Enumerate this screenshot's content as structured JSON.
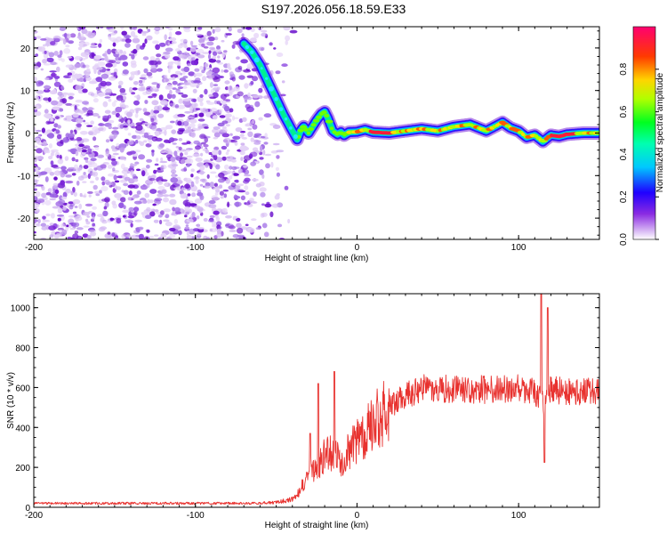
{
  "title": "S197.2026.056.18.59.E33",
  "chart_data": [
    {
      "type": "heatmap",
      "panel": "spectrogram",
      "xlabel": "Height of straight line (km)",
      "ylabel": "Frequency (Hz)",
      "xlim": [
        -200,
        150
      ],
      "ylim": [
        -25,
        25
      ],
      "xticks": [
        -200,
        -100,
        0,
        100
      ],
      "xtick_labels": [
        "-200",
        "-100",
        "0",
        "100"
      ],
      "yticks": [
        -20,
        -10,
        0,
        10,
        20
      ],
      "ytick_labels": [
        "-20",
        "-10",
        "0",
        "10",
        "20"
      ],
      "colorbar": {
        "label": "Normalized spectral amplitude",
        "range": [
          0,
          1
        ],
        "ticks": [
          0,
          0.2,
          0.4,
          0.6,
          0.8
        ],
        "tick_labels": [
          "0.0",
          "0.2",
          "0.4",
          "0.6",
          "0.8"
        ]
      },
      "ridge": {
        "x": [
          -70,
          -65,
          -60,
          -55,
          -50,
          -45,
          -40,
          -37,
          -35,
          -33,
          -30,
          -28,
          -25,
          -22,
          -20,
          -18,
          -15,
          -12,
          -10,
          -8,
          -5,
          0,
          5,
          10,
          20,
          30,
          40,
          50,
          60,
          70,
          80,
          90,
          95,
          100,
          105,
          110,
          115,
          120,
          125,
          130,
          140,
          150
        ],
        "y": [
          21,
          19,
          16,
          12,
          8,
          4,
          0.5,
          -1.5,
          0.5,
          1.5,
          0,
          1.2,
          3,
          4.5,
          5,
          3.5,
          0.5,
          -0.3,
          0.2,
          -0.5,
          0.2,
          0.3,
          0.8,
          0.2,
          0,
          0.5,
          1,
          0.5,
          1.5,
          2,
          0.5,
          2.5,
          1.2,
          0.5,
          -1,
          -0.5,
          -2,
          -0.5,
          -0.8,
          -0.3,
          0,
          0
        ]
      },
      "noise_region": [
        -200,
        -50
      ]
    },
    {
      "type": "line",
      "panel": "snr",
      "xlabel": "Height of straight line (km)",
      "ylabel": "SNR (10 * v/v)",
      "xlim": [
        -200,
        150
      ],
      "ylim": [
        0,
        1070
      ],
      "xticks": [
        -200,
        -100,
        0,
        100
      ],
      "xtick_labels": [
        "-200",
        "-100",
        "0",
        "100"
      ],
      "yticks": [
        0,
        200,
        400,
        600,
        800,
        1000
      ],
      "ytick_labels": [
        "0",
        "200",
        "400",
        "600",
        "800",
        "1000"
      ],
      "color": "#e8322f",
      "envelope": {
        "x": [
          -200,
          -60,
          -50,
          -40,
          -35,
          -30,
          -25,
          -20,
          -15,
          -10,
          -5,
          0,
          10,
          20,
          30,
          40,
          60,
          80,
          100,
          110,
          115,
          120,
          130,
          150
        ],
        "y": [
          20,
          20,
          25,
          40,
          80,
          200,
          180,
          260,
          280,
          220,
          280,
          330,
          420,
          500,
          560,
          600,
          590,
          590,
          600,
          580,
          520,
          590,
          580,
          580
        ]
      },
      "spikes": [
        {
          "x": -29,
          "y": 370
        },
        {
          "x": -24,
          "y": 620
        },
        {
          "x": -14,
          "y": 680
        },
        {
          "x": 114,
          "y": 1070
        },
        {
          "x": 116,
          "y": 225
        },
        {
          "x": 118,
          "y": 1000
        }
      ]
    }
  ]
}
